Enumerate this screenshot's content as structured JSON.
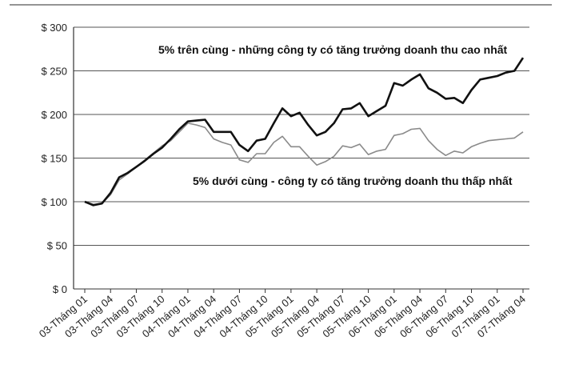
{
  "chart_data": {
    "type": "line",
    "title": "",
    "xlabel": "",
    "ylabel": "",
    "ylim": [
      0,
      300
    ],
    "y_ticks": [
      {
        "value": 300,
        "label": "$ 300"
      },
      {
        "value": 250,
        "label": "$ 250"
      },
      {
        "value": 200,
        "label": "$ 200"
      },
      {
        "value": 150,
        "label": "$ 150"
      },
      {
        "value": 100,
        "label": "$ 100"
      },
      {
        "value": 50,
        "label": "$ 50"
      },
      {
        "value": 0,
        "label": "$ 0"
      }
    ],
    "x_ticks": [
      {
        "index": 0,
        "label": "03-Tháng 01"
      },
      {
        "index": 3,
        "label": "03-Tháng 04"
      },
      {
        "index": 6,
        "label": "03-Tháng 07"
      },
      {
        "index": 9,
        "label": "03-Tháng 10"
      },
      {
        "index": 12,
        "label": "04-Tháng 01"
      },
      {
        "index": 15,
        "label": "04-Tháng 04"
      },
      {
        "index": 18,
        "label": "04-Tháng 07"
      },
      {
        "index": 21,
        "label": "04-Tháng 10"
      },
      {
        "index": 24,
        "label": "05-Tháng 01"
      },
      {
        "index": 27,
        "label": "05-Tháng 04"
      },
      {
        "index": 30,
        "label": "05-Tháng 07"
      },
      {
        "index": 33,
        "label": "05-Tháng 10"
      },
      {
        "index": 36,
        "label": "06-Tháng 01"
      },
      {
        "index": 39,
        "label": "06-Tháng 04"
      },
      {
        "index": 42,
        "label": "06-Tháng 07"
      },
      {
        "index": 45,
        "label": "06-Tháng 10"
      },
      {
        "index": 48,
        "label": "07-Tháng 01"
      },
      {
        "index": 51,
        "label": "07-Tháng 04"
      }
    ],
    "grid": "horizontal",
    "series": [
      {
        "name": "5% trên cùng - những công ty có tăng trưởng doanh thu cao nhất",
        "color": "#111111",
        "values": [
          100,
          96,
          98,
          110,
          128,
          133,
          140,
          147,
          155,
          162,
          172,
          183,
          192,
          193,
          194,
          180,
          180,
          180,
          165,
          158,
          170,
          172,
          190,
          207,
          198,
          202,
          188,
          176,
          180,
          190,
          206,
          207,
          213,
          198,
          204,
          210,
          236,
          233,
          240,
          246,
          230,
          225,
          218,
          219,
          213,
          228,
          240,
          242,
          244,
          248,
          250,
          265
        ]
      },
      {
        "name": "5% dưới cùng - công ty có tăng trưởng doanh thu thấp nhất",
        "color": "#8a8a8a",
        "values": [
          100,
          97,
          98,
          108,
          125,
          132,
          140,
          148,
          156,
          164,
          170,
          180,
          190,
          188,
          185,
          172,
          168,
          165,
          148,
          145,
          155,
          155,
          168,
          175,
          163,
          163,
          152,
          142,
          146,
          152,
          164,
          162,
          166,
          154,
          158,
          160,
          176,
          178,
          183,
          184,
          170,
          160,
          153,
          158,
          156,
          163,
          167,
          170,
          171,
          172,
          173,
          180
        ]
      }
    ]
  }
}
